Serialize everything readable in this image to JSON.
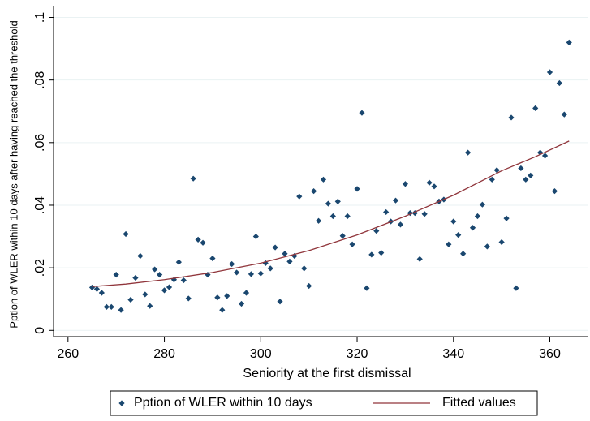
{
  "chart_data": {
    "type": "scatter",
    "x_label": "Seniority at the first dismissal",
    "y_label": "Pption of WLER within 10 days after having reached the threshold",
    "xlim": [
      257,
      368
    ],
    "xticks": [
      260,
      280,
      300,
      320,
      340,
      360
    ],
    "ylim": [
      -0.002,
      0.1035
    ],
    "yticks": [
      0,
      {
        "value": 0.02,
        "label": ".02"
      },
      {
        "value": 0.04,
        "label": ".04"
      },
      {
        "value": 0.06,
        "label": ".06"
      },
      {
        "value": 0.08,
        "label": ".08"
      },
      {
        "value": 0.1,
        "label": ".1"
      }
    ],
    "grid": true,
    "legend": "bottom",
    "series": [
      {
        "name": "Pption of WLER within 10 days",
        "type": "scatter",
        "color": "#1a476f",
        "x": [
          265,
          266,
          267,
          268,
          269,
          270,
          271,
          272,
          273,
          274,
          275,
          276,
          277,
          278,
          279,
          280,
          281,
          282,
          283,
          284,
          285,
          286,
          287,
          288,
          289,
          290,
          291,
          292,
          293,
          294,
          295,
          296,
          297,
          298,
          299,
          300,
          301,
          302,
          303,
          304,
          305,
          306,
          307,
          308,
          309,
          310,
          311,
          312,
          313,
          314,
          315,
          316,
          317,
          318,
          319,
          320,
          321,
          322,
          323,
          324,
          325,
          326,
          327,
          328,
          329,
          330,
          331,
          332,
          333,
          334,
          335,
          336,
          337,
          338,
          339,
          340,
          341,
          342,
          343,
          344,
          345,
          346,
          347,
          348,
          349,
          350,
          351,
          352,
          353,
          354,
          355,
          356,
          357,
          358,
          359,
          360,
          361,
          362,
          363,
          364
        ],
        "values": [
          0.0137,
          0.0132,
          0.012,
          0.0075,
          0.0075,
          0.0178,
          0.0065,
          0.0308,
          0.0098,
          0.0168,
          0.0238,
          0.0115,
          0.0078,
          0.0195,
          0.0178,
          0.0128,
          0.0138,
          0.0162,
          0.0218,
          0.016,
          0.0102,
          0.0485,
          0.029,
          0.028,
          0.0178,
          0.023,
          0.0105,
          0.0065,
          0.011,
          0.0212,
          0.0185,
          0.0085,
          0.012,
          0.018,
          0.03,
          0.0182,
          0.0215,
          0.0198,
          0.0265,
          0.0092,
          0.0245,
          0.022,
          0.0238,
          0.0428,
          0.0198,
          0.0142,
          0.0445,
          0.035,
          0.0482,
          0.0405,
          0.0365,
          0.0412,
          0.0302,
          0.0365,
          0.0275,
          0.0452,
          0.0695,
          0.0135,
          0.0242,
          0.0318,
          0.0248,
          0.0378,
          0.0348,
          0.0415,
          0.0338,
          0.0468,
          0.0375,
          0.0375,
          0.0228,
          0.0372,
          0.0472,
          0.046,
          0.0412,
          0.0418,
          0.0275,
          0.0348,
          0.0305,
          0.0245,
          0.0568,
          0.0328,
          0.0365,
          0.0402,
          0.0268,
          0.0482,
          0.0512,
          0.0282,
          0.0358,
          0.068,
          0.0135,
          0.0518,
          0.0482,
          0.0495,
          0.071,
          0.0568,
          0.0558,
          0.0825,
          0.0445,
          0.079,
          0.069,
          0.092
        ]
      },
      {
        "name": "Fitted values",
        "type": "line",
        "color": "#90353b",
        "x": [
          265,
          272,
          280,
          290,
          300,
          310,
          320,
          330,
          340,
          350,
          357,
          364
        ],
        "values": [
          0.014,
          0.0148,
          0.0162,
          0.0185,
          0.0215,
          0.0255,
          0.0305,
          0.0365,
          0.0432,
          0.051,
          0.0555,
          0.0605
        ]
      }
    ]
  }
}
